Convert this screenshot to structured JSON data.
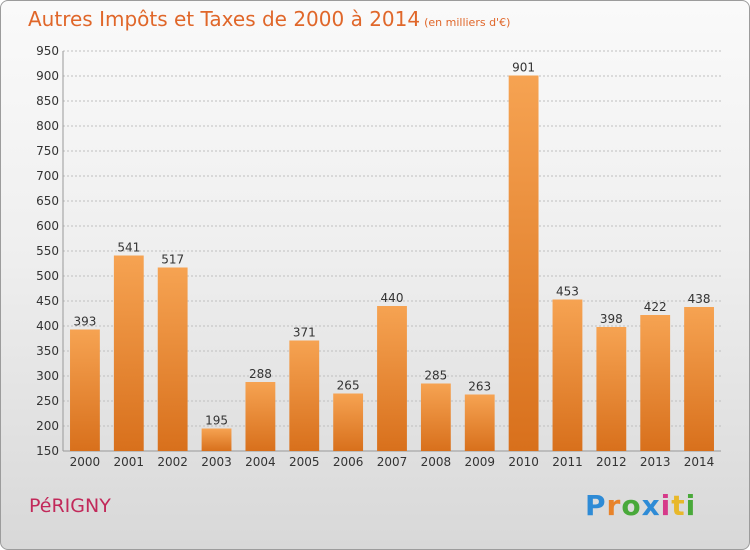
{
  "header": {
    "title": "Autres Impôts et Taxes de 2000 à 2014",
    "subtitle": "(en milliers d'€)"
  },
  "footer": {
    "commune": "PéRIGNY",
    "logo_letters": [
      "P",
      "r",
      "o",
      "x",
      "i",
      "t",
      "i"
    ],
    "logo_colors": [
      "#2e8bd6",
      "#e8832a",
      "#49a93a",
      "#2e8bd6",
      "#d63a8a",
      "#e8b82a",
      "#49a93a"
    ]
  },
  "colors": {
    "bar_light": "#f6a352",
    "bar_dark": "#d8701c",
    "grid": "#bfbfbf",
    "title": "#e0672a",
    "commune": "#c2295a"
  },
  "chart_data": {
    "type": "bar",
    "categories": [
      "2000",
      "2001",
      "2002",
      "2003",
      "2004",
      "2005",
      "2006",
      "2007",
      "2008",
      "2009",
      "2010",
      "2011",
      "2012",
      "2013",
      "2014"
    ],
    "values": [
      393,
      541,
      517,
      195,
      288,
      371,
      265,
      440,
      285,
      263,
      901,
      453,
      398,
      422,
      438
    ],
    "ylim": [
      150,
      950
    ],
    "yticks": [
      150,
      200,
      250,
      300,
      350,
      400,
      450,
      500,
      550,
      600,
      650,
      700,
      750,
      800,
      850,
      900,
      950
    ],
    "grid": true
  }
}
